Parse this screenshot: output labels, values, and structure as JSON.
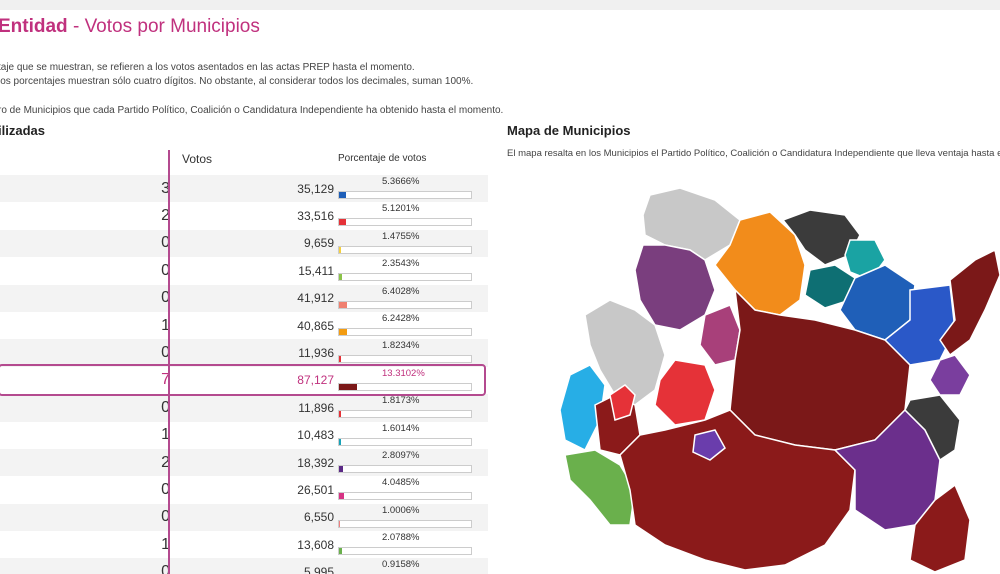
{
  "header": {
    "title_main": "Entidad",
    "title_sep": " - ",
    "title_sub": "Votos por Municipios",
    "notes": [
      "taje que se muestran, se refieren a los votos asentados en las actas PREP hasta el momento.",
      "los porcentajes muestran sólo cuatro dígitos. No obstante, al considerar todos los decimales, suman 100%.",
      "ro de Municipios que cada Partido Político, Coalición o Candidatura Independiente ha obtenido hasta el momento."
    ]
  },
  "table": {
    "title": "ilizadas",
    "col_votes": "Votos",
    "col_pct": "Porcentaje de votos",
    "rows": [
      {
        "count": "3",
        "votes": "35,129",
        "pct": "5.3666%",
        "fraction": 0.053666,
        "color": "#1f5fb8"
      },
      {
        "count": "2",
        "votes": "33,516",
        "pct": "5.1201%",
        "fraction": 0.051201,
        "color": "#e53238"
      },
      {
        "count": "0",
        "votes": "9,659",
        "pct": "1.4755%",
        "fraction": 0.014755,
        "color": "#f4d03f"
      },
      {
        "count": "0",
        "votes": "15,411",
        "pct": "2.3543%",
        "fraction": 0.023543,
        "color": "#8bc34a"
      },
      {
        "count": "0",
        "votes": "41,912",
        "pct": "6.4028%",
        "fraction": 0.064028,
        "color": "#f08070"
      },
      {
        "count": "1",
        "votes": "40,865",
        "pct": "6.2428%",
        "fraction": 0.062428,
        "color": "#f39c12"
      },
      {
        "count": "0",
        "votes": "11,936",
        "pct": "1.8234%",
        "fraction": 0.018234,
        "color": "#e53238"
      },
      {
        "count": "7",
        "votes": "87,127",
        "pct": "13.3102%",
        "fraction": 0.133102,
        "color": "#7b1818",
        "highlight": true
      },
      {
        "count": "0",
        "votes": "11,896",
        "pct": "1.8173%",
        "fraction": 0.018173,
        "color": "#e53238"
      },
      {
        "count": "1",
        "votes": "10,483",
        "pct": "1.6014%",
        "fraction": 0.016014,
        "color": "#17a2b8"
      },
      {
        "count": "2",
        "votes": "18,392",
        "pct": "2.8097%",
        "fraction": 0.028097,
        "color": "#5b2a86"
      },
      {
        "count": "0",
        "votes": "26,501",
        "pct": "4.0485%",
        "fraction": 0.040485,
        "color": "#d63384"
      },
      {
        "count": "0",
        "votes": "6,550",
        "pct": "1.0006%",
        "fraction": 0.010006,
        "color": "#f08080"
      },
      {
        "count": "1",
        "votes": "13,608",
        "pct": "2.0788%",
        "fraction": 0.020788,
        "color": "#6ab04c"
      },
      {
        "count": "0",
        "votes": "5,995",
        "pct": "0.9158%",
        "fraction": 0.009158,
        "color": "#999999"
      }
    ]
  },
  "map": {
    "title": "Mapa de Municipios",
    "description": "El mapa resalta en los Municipios el Partido Político, Coalición o Candidatura Independiente que lleva ventaja hasta el m"
  }
}
